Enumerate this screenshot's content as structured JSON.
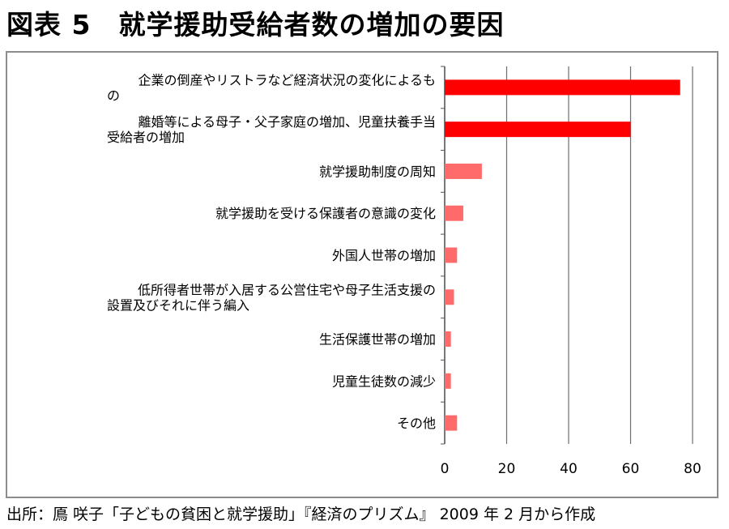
{
  "title": "図表 5　就学援助受給者数の増加の要因",
  "source": "出所：鳫 咲子「子どもの貧困と就学援助」『経済のプリズム』 2009 年 2 月から作成",
  "colors": {
    "bar_strong": "#ff0000",
    "bar_light": "#ff6b6b",
    "grid": "#6e6e6e",
    "frame": "#8c8c8c"
  },
  "chart_data": {
    "type": "bar",
    "orientation": "horizontal",
    "categories": [
      [
        "企業の倒産やリストラなど経済状況の変化によるも",
        "の"
      ],
      [
        "離婚等による母子・父子家庭の増加、児童扶養手当",
        "受給者の増加"
      ],
      [
        "就学援助制度の周知"
      ],
      [
        "就学援助を受ける保護者の意識の変化"
      ],
      [
        "外国人世帯の増加"
      ],
      [
        "低所得者世帯が入居する公営住宅や母子生活支援の",
        "設置及びそれに伴う編入"
      ],
      [
        "生活保護世帯の増加"
      ],
      [
        "児童生徒数の減少"
      ],
      [
        "その他"
      ]
    ],
    "values": [
      76,
      60,
      12,
      6,
      4,
      3,
      2,
      2,
      4
    ],
    "highlight": [
      true,
      true,
      false,
      false,
      false,
      false,
      false,
      false,
      false
    ],
    "xlim": [
      0,
      80
    ],
    "xticks": [
      "0",
      "20",
      "40",
      "60",
      "80"
    ],
    "grid": true
  }
}
